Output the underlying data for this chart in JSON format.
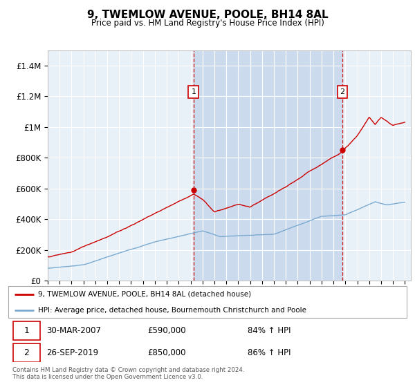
{
  "title": "9, TWEMLOW AVENUE, POOLE, BH14 8AL",
  "subtitle": "Price paid vs. HM Land Registry's House Price Index (HPI)",
  "ylabel_ticks": [
    "£0",
    "£200K",
    "£400K",
    "£600K",
    "£800K",
    "£1M",
    "£1.2M",
    "£1.4M"
  ],
  "ytick_values": [
    0,
    200000,
    400000,
    600000,
    800000,
    1000000,
    1200000,
    1400000
  ],
  "ylim": [
    0,
    1500000
  ],
  "xlim": [
    1995,
    2025.5
  ],
  "bg_color": "#e8f0f8",
  "shade_color": "#ccdaee",
  "hpi_line_color": "#7aaad0",
  "price_line_color": "#cc0000",
  "sale1_x": 2007.25,
  "sale1_y": 590000,
  "sale2_x": 2019.75,
  "sale2_y": 850000,
  "legend_line1": "9, TWEMLOW AVENUE, POOLE, BH14 8AL (detached house)",
  "legend_line2": "HPI: Average price, detached house, Bournemouth Christchurch and Poole",
  "table_row1": [
    "1",
    "30-MAR-2007",
    "£590,000",
    "84% ↑ HPI"
  ],
  "table_row2": [
    "2",
    "26-SEP-2019",
    "£850,000",
    "86% ↑ HPI"
  ],
  "footnote": "Contains HM Land Registry data © Crown copyright and database right 2024.\nThis data is licensed under the Open Government Licence v3.0."
}
